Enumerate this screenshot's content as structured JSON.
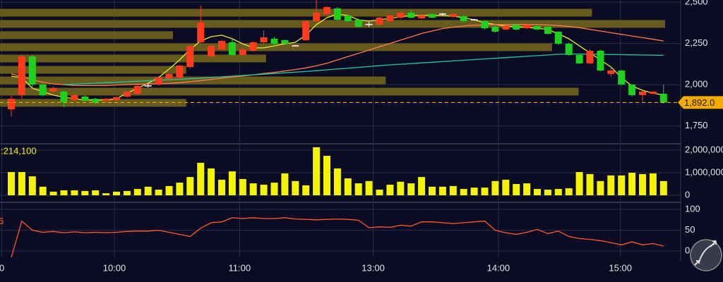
{
  "chart_data": [
    {
      "type": "candlestick",
      "ylim": [
        1659,
        2513
      ],
      "yticks": [
        {
          "value": 2500,
          "label": "2,500"
        },
        {
          "value": 2250,
          "label": "2,250"
        },
        {
          "value": 2000,
          "label": "2,000"
        },
        {
          "value": 1750,
          "label": "1,750"
        }
      ],
      "grid": true,
      "up_color": "#ff3b1c",
      "down_color": "#1fd11f",
      "doji_color": "#ffffff",
      "ohlc": [
        [
          1851,
          1937,
          1808,
          1915
        ],
        [
          1937,
          2180,
          1915,
          2171
        ],
        [
          2171,
          2180,
          1979,
          2001
        ],
        [
          2001,
          2005,
          1930,
          1937
        ],
        [
          1958,
          1990,
          1950,
          1979
        ],
        [
          1958,
          1965,
          1864,
          1894
        ],
        [
          1907,
          1945,
          1900,
          1937
        ],
        [
          1928,
          1935,
          1898,
          1902
        ],
        [
          1915,
          1920,
          1885,
          1890
        ],
        [
          1902,
          1920,
          1895,
          1915
        ],
        [
          1907,
          1930,
          1900,
          1924
        ],
        [
          1928,
          1965,
          1922,
          1958
        ],
        [
          1945,
          1998,
          1940,
          1992
        ],
        [
          1993,
          2005,
          1982,
          1993
        ],
        [
          2001,
          2050,
          1995,
          2043
        ],
        [
          2035,
          2070,
          2030,
          2065
        ],
        [
          2043,
          2120,
          2040,
          2116
        ],
        [
          2107,
          2240,
          2100,
          2235
        ],
        [
          2257,
          2479,
          2250,
          2376
        ],
        [
          2171,
          2245,
          2165,
          2235
        ],
        [
          2214,
          2270,
          2210,
          2265
        ],
        [
          2257,
          2275,
          2175,
          2180
        ],
        [
          2180,
          2225,
          2175,
          2214
        ],
        [
          2206,
          2262,
          2200,
          2257
        ],
        [
          2257,
          2329,
          2250,
          2287
        ],
        [
          2278,
          2290,
          2230,
          2248
        ],
        [
          2270,
          2275,
          2240,
          2248
        ],
        [
          2235,
          2240,
          2232,
          2235
        ],
        [
          2270,
          2390,
          2265,
          2385
        ],
        [
          2385,
          2513,
          2380,
          2436
        ],
        [
          2428,
          2475,
          2420,
          2470
        ],
        [
          2462,
          2470,
          2388,
          2393
        ],
        [
          2419,
          2425,
          2380,
          2385
        ],
        [
          2393,
          2400,
          2345,
          2351
        ],
        [
          2365,
          2380,
          2350,
          2365
        ],
        [
          2364,
          2412,
          2355,
          2406
        ],
        [
          2385,
          2425,
          2380,
          2419
        ],
        [
          2406,
          2442,
          2400,
          2436
        ],
        [
          2436,
          2450,
          2400,
          2406
        ],
        [
          2402,
          2425,
          2398,
          2419
        ],
        [
          2428,
          2432,
          2402,
          2406
        ],
        [
          2428,
          2435,
          2420,
          2428
        ],
        [
          2411,
          2432,
          2405,
          2428
        ],
        [
          2415,
          2420,
          2380,
          2385
        ],
        [
          2393,
          2400,
          2388,
          2393
        ],
        [
          2385,
          2390,
          2335,
          2342
        ],
        [
          2351,
          2356,
          2315,
          2321
        ],
        [
          2334,
          2360,
          2330,
          2355
        ],
        [
          2364,
          2370,
          2328,
          2334
        ],
        [
          2342,
          2368,
          2338,
          2364
        ],
        [
          2355,
          2360,
          2330,
          2334
        ],
        [
          2351,
          2356,
          2305,
          2308
        ],
        [
          2321,
          2325,
          2240,
          2248
        ],
        [
          2248,
          2255,
          2175,
          2180
        ],
        [
          2180,
          2190,
          2125,
          2129
        ],
        [
          2129,
          2215,
          2125,
          2206
        ],
        [
          2206,
          2212,
          2080,
          2086
        ],
        [
          2065,
          2100,
          2050,
          2086
        ],
        [
          2086,
          2090,
          1995,
          2001
        ],
        [
          2001,
          2005,
          1930,
          1937
        ],
        [
          1937,
          1962,
          1900,
          1958
        ],
        [
          1945,
          1962,
          1940,
          1958
        ],
        [
          1945,
          2001,
          1885,
          1892
        ]
      ],
      "series": [
        {
          "color": "#e9e83a",
          "values": [
            2052,
            2043,
            1979,
            1958,
            1937,
            1924,
            1915,
            1907,
            1907,
            1907,
            1915,
            1949,
            1979,
            2009,
            2043,
            2095,
            2150,
            2214,
            2265,
            2291,
            2300,
            2278,
            2248,
            2223,
            2223,
            2235,
            2248,
            2257,
            2300,
            2364,
            2406,
            2428,
            2419,
            2393,
            2385,
            2393,
            2402,
            2411,
            2419,
            2419,
            2419,
            2419,
            2415,
            2406,
            2393,
            2376,
            2364,
            2355,
            2351,
            2346,
            2342,
            2334,
            2308,
            2278,
            2235,
            2193,
            2150,
            2107,
            2043,
            1992,
            1966,
            1949,
            1937
          ]
        },
        {
          "color": "#ff7a4a",
          "values": [
            2065,
            2050,
            2030,
            2015,
            2005,
            2000,
            1995,
            1995,
            1995,
            1995,
            1998,
            2000,
            2002,
            2004,
            2006,
            2008,
            2012,
            2018,
            2025,
            2032,
            2040,
            2047,
            2053,
            2060,
            2068,
            2075,
            2083,
            2092,
            2102,
            2115,
            2130,
            2150,
            2170,
            2190,
            2210,
            2230,
            2250,
            2270,
            2290,
            2310,
            2325,
            2340,
            2348,
            2355,
            2360,
            2362,
            2364,
            2365,
            2365,
            2365,
            2364,
            2362,
            2358,
            2352,
            2345,
            2335,
            2325,
            2315,
            2305,
            2295,
            2285,
            2275,
            2265
          ]
        },
        {
          "color": "#22c8a0",
          "values": [
            null,
            null,
            null,
            null,
            null,
            2000,
            2003,
            2006,
            2009,
            2012,
            2015,
            2018,
            2021,
            2024,
            2027,
            2030,
            2033,
            2036,
            2040,
            2044,
            2048,
            2052,
            2056,
            2060,
            2064,
            2068,
            2072,
            2076,
            2080,
            2085,
            2090,
            2095,
            2100,
            2105,
            2110,
            2115,
            2120,
            2124,
            2128,
            2132,
            2136,
            2140,
            2144,
            2148,
            2152,
            2156,
            2160,
            2164,
            2168,
            2172,
            2176,
            2180,
            2184,
            2186,
            2186,
            2185,
            2184,
            2183,
            2182,
            2181,
            2180,
            2179,
            2178
          ]
        }
      ],
      "profile": {
        "color": "#6d5f1e",
        "prices": [
          2436,
          2368,
          2300,
          2227,
          2159,
          2090,
          2026,
          1958,
          1890
        ],
        "volumes": [
          8.9,
          10.0,
          2.6,
          8.3,
          4.0,
          2.8,
          5.8,
          8.7,
          2.8
        ]
      },
      "last_price": {
        "value": 1892,
        "label": "1,892.0",
        "color": "#f2ac00"
      }
    },
    {
      "type": "bar",
      "label": ":214,100",
      "color": "#f4f400",
      "ylim": [
        0,
        2250000
      ],
      "yticks": [
        0,
        {
          "value": 1000000,
          "label": "1,000,000"
        },
        {
          "value": 2000000,
          "label": "2,000,000"
        }
      ],
      "values": [
        1030000,
        1030000,
        840000,
        380000,
        160000,
        220000,
        220000,
        190000,
        220000,
        90000,
        160000,
        190000,
        280000,
        380000,
        250000,
        410000,
        560000,
        810000,
        1440000,
        1190000,
        690000,
        1060000,
        720000,
        530000,
        470000,
        560000,
        970000,
        630000,
        440000,
        2130000,
        1750000,
        1190000,
        750000,
        530000,
        630000,
        250000,
        470000,
        600000,
        530000,
        810000,
        380000,
        380000,
        410000,
        280000,
        340000,
        340000,
        630000,
        690000,
        500000,
        530000,
        280000,
        250000,
        280000,
        310000,
        1030000,
        940000,
        630000,
        880000,
        880000,
        1000000,
        940000,
        970000,
        630000
      ]
    },
    {
      "type": "line",
      "label": "6",
      "color": "#ff5a2a",
      "ylim": [
        -15,
        111
      ],
      "yticks": [
        100,
        50,
        0
      ],
      "values": [
        -15,
        72,
        50,
        45,
        47,
        44,
        46,
        44,
        45,
        44,
        45,
        47,
        48,
        48,
        50,
        45,
        40,
        35,
        55,
        68,
        70,
        80,
        78,
        80,
        78,
        78,
        80,
        77,
        76,
        75,
        76,
        77,
        76,
        74,
        56,
        58,
        57,
        62,
        60,
        70,
        70,
        68,
        66,
        68,
        70,
        72,
        50,
        44,
        40,
        45,
        52,
        42,
        48,
        35,
        30,
        28,
        25,
        20,
        15,
        22,
        15,
        18,
        12
      ],
      "xticks": [
        {
          "value": -0.9,
          "label": "0"
        },
        {
          "value": 9.8,
          "label": "10:00"
        },
        {
          "value": 21.7,
          "label": "11:00"
        },
        {
          "value": 34.4,
          "label": "13:00"
        },
        {
          "value": 46.3,
          "label": "14:00"
        },
        {
          "value": 57.9,
          "label": "15:00"
        }
      ]
    }
  ]
}
